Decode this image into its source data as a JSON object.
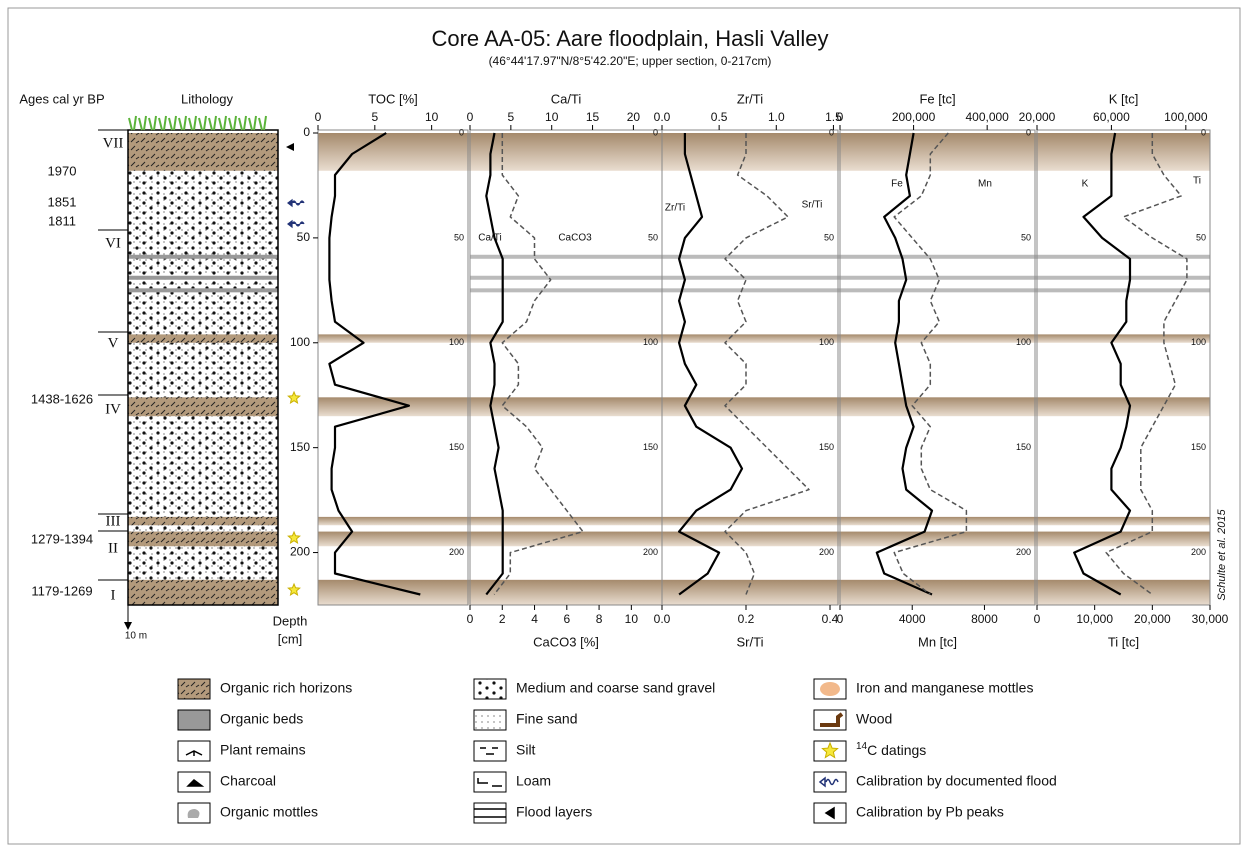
{
  "header": {
    "title": "Core AA-05: Aare floodplain, Hasli Valley",
    "subtitle": "(46°44'17.97\"N/8°5'42.20\"E; upper section, 0-217cm)"
  },
  "ages_title": "Ages cal yr BP",
  "lithology_title": "Lithology",
  "depth_label": [
    "Depth",
    "[cm]"
  ],
  "scale_label": "10 m",
  "ages": [
    "1970",
    "1851",
    "1811",
    "1438-1626",
    "1279-1394",
    "1179-1269"
  ],
  "units": [
    "VII",
    "VI",
    "V",
    "IV",
    "III",
    "II",
    "I"
  ],
  "credit": "Schulte et al. 2015",
  "core": {
    "horizons": [
      [
        0,
        18
      ],
      [
        96,
        100
      ],
      [
        126,
        135
      ],
      [
        183,
        187
      ],
      [
        190,
        197
      ],
      [
        213,
        225
      ]
    ],
    "gray_beds": [
      59,
      69,
      75
    ]
  },
  "chart_data": [
    {
      "type": "line",
      "title": "TOC [%]",
      "y": [
        0,
        10,
        20,
        30,
        40,
        50,
        60,
        70,
        80,
        90,
        100,
        110,
        120,
        130,
        140,
        150,
        160,
        170,
        180,
        190,
        200,
        210,
        220
      ],
      "ylim": [
        0,
        225
      ],
      "yticks": [
        0,
        50,
        100,
        150,
        200
      ],
      "xlim": [
        0,
        13.2
      ],
      "xticks": [
        0,
        5,
        10
      ],
      "series": [
        {
          "color": "#000000",
          "values": [
            6,
            3,
            1.5,
            1.5,
            1.2,
            1,
            1,
            1,
            1.2,
            1.5,
            4,
            1,
            1.5,
            8,
            1.5,
            1.5,
            1.2,
            1.2,
            1.8,
            3,
            1.5,
            1.5,
            9
          ]
        }
      ]
    },
    {
      "type": "line",
      "title": "Ca/Ti",
      "x2label": "CaCO3 [%]",
      "y": [
        0,
        10,
        20,
        30,
        40,
        50,
        60,
        70,
        80,
        90,
        100,
        110,
        120,
        130,
        140,
        150,
        160,
        170,
        180,
        190,
        200,
        210,
        220
      ],
      "ylim": [
        0,
        225
      ],
      "yticks": [
        0,
        50,
        100,
        150,
        200
      ],
      "xlim": [
        0,
        23.5
      ],
      "xticks": [
        0,
        5,
        10,
        15,
        20
      ],
      "x2lim": [
        0,
        11.9
      ],
      "x2ticks": [
        0,
        2,
        4,
        6,
        8,
        10
      ],
      "series": [
        {
          "name": "Ca/Ti",
          "color": "#000000",
          "values": [
            3,
            2.5,
            2.5,
            2,
            2.5,
            3,
            4,
            4,
            4,
            4,
            2.5,
            3,
            3,
            2.5,
            3,
            3.5,
            3,
            3.5,
            4,
            4,
            4,
            4,
            2
          ]
        },
        {
          "name": "CaCO3",
          "color": "#555555",
          "dashed": true,
          "axis": "x2",
          "values": [
            2,
            2,
            2,
            3,
            2.5,
            4,
            4,
            5,
            4,
            3.5,
            2,
            3,
            3,
            2,
            3.5,
            4.5,
            4,
            5,
            6,
            7,
            2.5,
            2.5,
            1.5
          ]
        }
      ]
    },
    {
      "type": "line",
      "title": "Zr/Ti",
      "x2label": "Sr/Ti",
      "y": [
        0,
        10,
        20,
        30,
        40,
        50,
        60,
        70,
        80,
        90,
        100,
        110,
        120,
        130,
        140,
        150,
        160,
        170,
        180,
        190,
        200,
        210,
        220
      ],
      "ylim": [
        0,
        225
      ],
      "yticks": [
        0,
        50,
        100,
        150,
        200
      ],
      "xlim": [
        0,
        1.54
      ],
      "xticks": [
        {
          "value": 0,
          "label": "0.0"
        },
        0.5,
        {
          "value": 1,
          "label": "1.0"
        },
        1.5
      ],
      "x2lim": [
        0,
        0.419
      ],
      "x2ticks": [
        {
          "value": 0,
          "label": "0.0"
        },
        0.2,
        0.4
      ],
      "series": [
        {
          "name": "Zr/Ti",
          "color": "#000000",
          "values": [
            0.2,
            0.2,
            0.25,
            0.3,
            0.35,
            0.2,
            0.15,
            0.2,
            0.15,
            0.2,
            0.15,
            0.2,
            0.3,
            0.2,
            0.3,
            0.6,
            0.7,
            0.6,
            0.3,
            0.15,
            0.5,
            0.4,
            0.15
          ]
        },
        {
          "name": "Sr/Ti",
          "color": "#555555",
          "dashed": true,
          "axis": "x2",
          "values": [
            0.2,
            0.2,
            0.18,
            0.25,
            0.3,
            0.2,
            0.15,
            0.2,
            0.18,
            0.2,
            0.15,
            0.2,
            0.2,
            0.15,
            0.2,
            0.25,
            0.3,
            0.35,
            0.2,
            0.15,
            0.2,
            0.22,
            0.2
          ]
        }
      ]
    },
    {
      "type": "line",
      "title": "Fe [tc]",
      "x2label": "Mn [tc]",
      "y": [
        0,
        10,
        20,
        30,
        40,
        50,
        60,
        70,
        80,
        90,
        100,
        110,
        120,
        130,
        140,
        150,
        160,
        170,
        180,
        190,
        200,
        210,
        220
      ],
      "ylim": [
        0,
        225
      ],
      "yticks": [
        0,
        50,
        100,
        150,
        200
      ],
      "xlim": [
        0,
        530000
      ],
      "xticks": [
        0,
        {
          "value": 200000,
          "label": "200,000"
        },
        {
          "value": 400000,
          "label": "400,000"
        }
      ],
      "x2lim": [
        0,
        10800
      ],
      "x2ticks": [
        0,
        4000,
        8000
      ],
      "series": [
        {
          "name": "Fe",
          "color": "#000000",
          "values": [
            200000,
            190000,
            180000,
            190000,
            120000,
            150000,
            170000,
            180000,
            160000,
            160000,
            150000,
            160000,
            170000,
            180000,
            200000,
            180000,
            170000,
            180000,
            250000,
            230000,
            100000,
            120000,
            250000
          ]
        },
        {
          "name": "Mn",
          "color": "#555555",
          "dashed": true,
          "axis": "x2",
          "values": [
            6000,
            5000,
            5000,
            4500,
            3000,
            4000,
            5000,
            5500,
            5000,
            5500,
            4500,
            5000,
            5000,
            4000,
            5000,
            4500,
            4500,
            5000,
            7000,
            7000,
            3000,
            3500,
            5000
          ]
        }
      ]
    },
    {
      "type": "line",
      "title": "K [tc]",
      "x2label": "Ti [tc]",
      "y": [
        0,
        10,
        20,
        30,
        40,
        50,
        60,
        70,
        80,
        90,
        100,
        110,
        120,
        130,
        140,
        150,
        160,
        170,
        180,
        190,
        200,
        210,
        220
      ],
      "ylim": [
        0,
        225
      ],
      "yticks": [
        0,
        50,
        100,
        150,
        200
      ],
      "xlim": [
        20000,
        113000
      ],
      "xticks": [
        {
          "value": 20000,
          "label": "20,000"
        },
        {
          "value": 60000,
          "label": "60,000"
        },
        {
          "value": 100000,
          "label": "100,000"
        }
      ],
      "x2lim": [
        0,
        30000
      ],
      "x2ticks": [
        0,
        {
          "value": 10000,
          "label": "10,000"
        },
        {
          "value": 20000,
          "label": "20,000"
        },
        {
          "value": 30000,
          "label": "30,000"
        }
      ],
      "series": [
        {
          "name": "K",
          "color": "#000000",
          "values": [
            62000,
            60000,
            60000,
            60000,
            45000,
            55000,
            70000,
            70000,
            68000,
            68000,
            60000,
            65000,
            65000,
            70000,
            68000,
            65000,
            60000,
            60000,
            70000,
            65000,
            40000,
            45000,
            65000
          ]
        },
        {
          "name": "Ti",
          "color": "#555555",
          "dashed": true,
          "axis": "x2",
          "values": [
            20000,
            20000,
            22000,
            25000,
            15000,
            20000,
            26000,
            26000,
            24000,
            22000,
            22000,
            23000,
            24000,
            22000,
            20000,
            18000,
            18000,
            18000,
            20000,
            20000,
            12000,
            15000,
            20000
          ]
        }
      ]
    }
  ],
  "legend": [
    {
      "label": "Organic rich horizons"
    },
    {
      "label": "Organic beds"
    },
    {
      "label": "Plant remains"
    },
    {
      "label": "Charcoal"
    },
    {
      "label": "Organic mottles"
    },
    {
      "label": "Medium and coarse sand gravel"
    },
    {
      "label": "Fine sand"
    },
    {
      "label": "Silt"
    },
    {
      "label": "Loam"
    },
    {
      "label": "Flood layers"
    },
    {
      "label": "Iron and manganese mottles"
    },
    {
      "label": "Wood"
    },
    {
      "sup": "14",
      "label": "C datings"
    },
    {
      "label": "Calibration by documented flood"
    },
    {
      "label": "Calibration by Pb peaks"
    }
  ]
}
